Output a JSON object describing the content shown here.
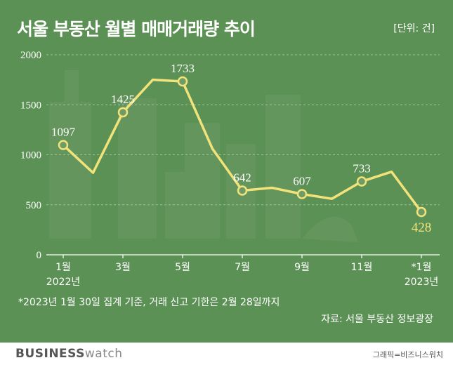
{
  "header": {
    "title": "서울 부동산 월별 매매거래량 추이",
    "unit": "[단위: 건]"
  },
  "chart_data": {
    "type": "line",
    "x": [
      "2022-01",
      "2022-02",
      "2022-03",
      "2022-04",
      "2022-05",
      "2022-06",
      "2022-07",
      "2022-08",
      "2022-09",
      "2022-10",
      "2022-11",
      "2022-12",
      "2023-01"
    ],
    "series": [
      {
        "values": [
          1097,
          820,
          1425,
          1750,
          1733,
          1060,
          642,
          670,
          607,
          560,
          733,
          830,
          428
        ]
      }
    ],
    "data_labels": [
      "1097",
      "1425",
      "1733",
      "642",
      "607",
      "733",
      "428"
    ],
    "labeled_indices": [
      0,
      2,
      4,
      6,
      8,
      10,
      12
    ],
    "yticks": [
      "0",
      "500",
      "1000",
      "1500",
      "2000"
    ],
    "ylim": [
      0,
      2000
    ],
    "xtick_labels": [
      {
        "month": "1월",
        "year": "2022년"
      },
      {
        "month": "3월",
        "year": ""
      },
      {
        "month": "5월",
        "year": ""
      },
      {
        "month": "7월",
        "year": ""
      },
      {
        "month": "9월",
        "year": ""
      },
      {
        "month": "11월",
        "year": ""
      },
      {
        "month": "*1월",
        "year": "2023년"
      }
    ],
    "grid": true,
    "colors": {
      "line": "#f1e37a",
      "last_label": "#f1e37a",
      "grid": "#9fc39a",
      "axis": "#ffffff"
    }
  },
  "footnote": "*2023년 1월 30일 집계 기준, 거래 신고 기한은 2월 28일까지",
  "source": "자료: 서울 부동산 정보광장",
  "footer": {
    "brand_bold": "BUSINESS",
    "brand_light": "watch",
    "credit": "그래픽=비즈니스워치"
  }
}
